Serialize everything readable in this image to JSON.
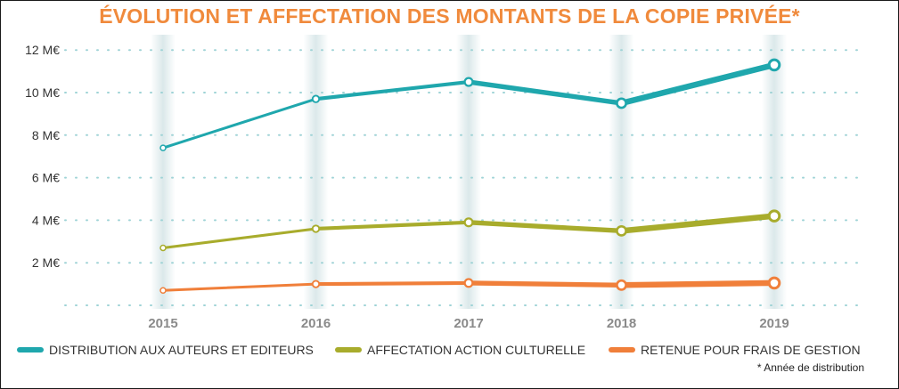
{
  "title": "ÉVOLUTION ET AFFECTATION DES MONTANTS DE LA COPIE PRIVÉE*",
  "footnote": "* Année de distribution",
  "colors": {
    "title": "#f08a3c",
    "teal": "#1fa7ad",
    "olive": "#a8ac2c",
    "orange": "#f07f3a",
    "grid": "#9fd3d6"
  },
  "chart_data": {
    "type": "line",
    "title": "ÉVOLUTION ET AFFECTATION DES MONTANTS DE LA COPIE PRIVÉE*",
    "categories": [
      "2015",
      "2016",
      "2017",
      "2018",
      "2019"
    ],
    "ylim": [
      0,
      12
    ],
    "yticks": [
      2,
      4,
      6,
      8,
      10,
      12
    ],
    "ytick_labels": [
      "2 M€",
      "4 M€",
      "6 M€",
      "8 M€",
      "10 M€",
      "12 M€"
    ],
    "grid": true,
    "legend_position": "bottom",
    "series": [
      {
        "name": "DISTRIBUTION AUX AUTEURS ET EDITEURS",
        "color": "#1fa7ad",
        "values": [
          7.4,
          9.7,
          10.5,
          9.5,
          11.3
        ]
      },
      {
        "name": "AFFECTATION ACTION CULTURELLE",
        "color": "#a8ac2c",
        "values": [
          2.7,
          3.6,
          3.9,
          3.5,
          4.2
        ]
      },
      {
        "name": "RETENUE POUR FRAIS DE GESTION",
        "color": "#f07f3a",
        "values": [
          0.7,
          1.0,
          1.05,
          0.95,
          1.05
        ]
      }
    ]
  }
}
